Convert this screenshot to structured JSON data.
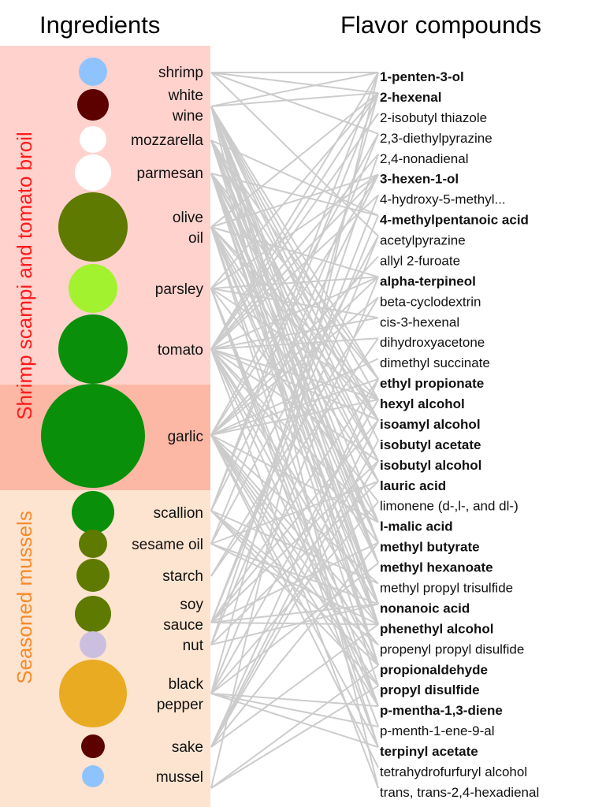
{
  "headers": {
    "ingredients": "Ingredients",
    "compounds": "Flavor compounds"
  },
  "groups": [
    {
      "label": "Shrimp scampi and tomato broil",
      "color": "#ff1a1a",
      "background": "#ffd2cd"
    },
    {
      "label": "",
      "color": "",
      "background": "#fdb8a5"
    },
    {
      "label": "Seasoned mussels",
      "color": "#f78a2a",
      "background": "#fde4d0"
    }
  ],
  "edge_color": "#cccccc",
  "ingredients": [
    {
      "lines": [
        "shrimp"
      ],
      "color": "#8fc3ff",
      "size": 18,
      "group": 0
    },
    {
      "lines": [
        "white",
        "wine"
      ],
      "color": "#5c0000",
      "size": 20,
      "group": 0
    },
    {
      "lines": [
        "mozzarella"
      ],
      "color": "#ffffff",
      "size": 17,
      "group": 0
    },
    {
      "lines": [
        "parmesan"
      ],
      "color": "#ffffff",
      "size": 23,
      "group": 0
    },
    {
      "lines": [
        "olive",
        "oil"
      ],
      "color": "#5e7a00",
      "size": 44,
      "group": 0
    },
    {
      "lines": [
        "parsley"
      ],
      "color": "#a3f230",
      "size": 31,
      "group": 0
    },
    {
      "lines": [
        "tomato"
      ],
      "color": "#0a8f0a",
      "size": 44,
      "group": 0
    },
    {
      "lines": [
        "garlic"
      ],
      "color": "#0a8f0a",
      "size": 66,
      "group": 1
    },
    {
      "lines": [
        "scallion"
      ],
      "color": "#0a8f0a",
      "size": 27,
      "group": 2
    },
    {
      "lines": [
        "sesame oil"
      ],
      "color": "#5e7a00",
      "size": 18,
      "group": 2
    },
    {
      "lines": [
        "starch"
      ],
      "color": "#5e7a00",
      "size": 21,
      "group": 2
    },
    {
      "lines": [
        "soy",
        "sauce"
      ],
      "color": "#5e7a00",
      "size": 23,
      "group": 2
    },
    {
      "lines": [
        "nut"
      ],
      "color": "#cbbfe0",
      "size": 17,
      "group": 2
    },
    {
      "lines": [
        "black",
        "pepper"
      ],
      "color": "#e8ab22",
      "size": 43,
      "group": 2
    },
    {
      "lines": [
        "sake"
      ],
      "color": "#5c0000",
      "size": 15,
      "group": 2
    },
    {
      "lines": [
        "mussel"
      ],
      "color": "#8fc3ff",
      "size": 14,
      "group": 2
    }
  ],
  "compounds": [
    {
      "name": "1-penten-3-ol",
      "bold": true
    },
    {
      "name": "2-hexenal",
      "bold": true
    },
    {
      "name": "2-isobutyl thiazole",
      "bold": false
    },
    {
      "name": "2,3-diethylpyrazine",
      "bold": false
    },
    {
      "name": "2,4-nonadienal",
      "bold": false
    },
    {
      "name": "3-hexen-1-ol",
      "bold": true
    },
    {
      "name": "4-hydroxy-5-methyl...",
      "bold": false
    },
    {
      "name": "4-methylpentanoic acid",
      "bold": true
    },
    {
      "name": "acetylpyrazine",
      "bold": false
    },
    {
      "name": "allyl 2-furoate",
      "bold": false
    },
    {
      "name": "alpha-terpineol",
      "bold": true
    },
    {
      "name": "beta-cyclodextrin",
      "bold": false
    },
    {
      "name": "cis-3-hexenal",
      "bold": false
    },
    {
      "name": "dihydroxyacetone",
      "bold": false
    },
    {
      "name": "dimethyl succinate",
      "bold": false
    },
    {
      "name": "ethyl propionate",
      "bold": true
    },
    {
      "name": "hexyl alcohol",
      "bold": true
    },
    {
      "name": "isoamyl alcohol",
      "bold": true
    },
    {
      "name": "isobutyl acetate",
      "bold": true
    },
    {
      "name": "isobutyl alcohol",
      "bold": true
    },
    {
      "name": "lauric acid",
      "bold": true
    },
    {
      "name": "limonene (d-,l-, and dl-)",
      "bold": false
    },
    {
      "name": "l-malic acid",
      "bold": true
    },
    {
      "name": "methyl butyrate",
      "bold": true
    },
    {
      "name": "methyl hexanoate",
      "bold": true
    },
    {
      "name": "methyl propyl trisulfide",
      "bold": false
    },
    {
      "name": "nonanoic acid",
      "bold": true
    },
    {
      "name": "phenethyl alcohol",
      "bold": true
    },
    {
      "name": "propenyl propyl disulfide",
      "bold": false
    },
    {
      "name": "propionaldehyde",
      "bold": true
    },
    {
      "name": "propyl disulfide",
      "bold": true
    },
    {
      "name": "p-mentha-1,3-diene",
      "bold": true
    },
    {
      "name": "p-menth-1-ene-9-al",
      "bold": false
    },
    {
      "name": "terpinyl acetate",
      "bold": true
    },
    {
      "name": "tetrahydrofurfuryl alcohol",
      "bold": false
    },
    {
      "name": "trans, trans-2,4-hexadienal",
      "bold": false
    }
  ],
  "edges": [
    [
      0,
      1,
      3,
      8
    ],
    [
      0,
      1,
      15,
      16,
      17,
      18,
      19,
      22,
      23,
      24,
      26,
      27,
      29,
      35
    ],
    [
      7,
      15,
      17,
      19,
      20,
      23,
      24,
      26,
      29
    ],
    [
      7,
      15,
      17,
      19,
      20,
      23,
      24,
      26,
      27,
      29,
      30
    ],
    [
      1,
      5,
      10,
      16,
      17,
      20,
      22,
      24,
      26,
      27,
      31,
      33
    ],
    [
      1,
      5,
      10,
      12,
      16,
      21,
      31,
      32,
      33
    ],
    [
      0,
      1,
      2,
      4,
      5,
      6,
      10,
      12,
      13,
      16,
      17,
      19,
      22,
      23,
      26,
      27,
      29,
      31,
      35
    ],
    [
      3,
      5,
      9,
      10,
      11,
      14,
      15,
      16,
      22,
      25,
      27,
      28,
      29,
      30,
      31,
      33,
      34
    ],
    [
      0,
      1,
      5,
      25,
      28,
      29,
      30
    ],
    [
      3,
      8,
      20,
      26,
      27
    ],
    [
      11,
      13
    ],
    [
      6,
      7,
      15,
      17,
      19,
      23,
      26,
      27
    ],
    [
      4,
      8,
      20,
      26
    ],
    [
      1,
      10,
      16,
      21,
      24,
      31,
      32,
      33
    ],
    [
      15,
      17,
      18,
      19,
      23,
      27
    ],
    [
      0,
      29,
      30
    ]
  ]
}
